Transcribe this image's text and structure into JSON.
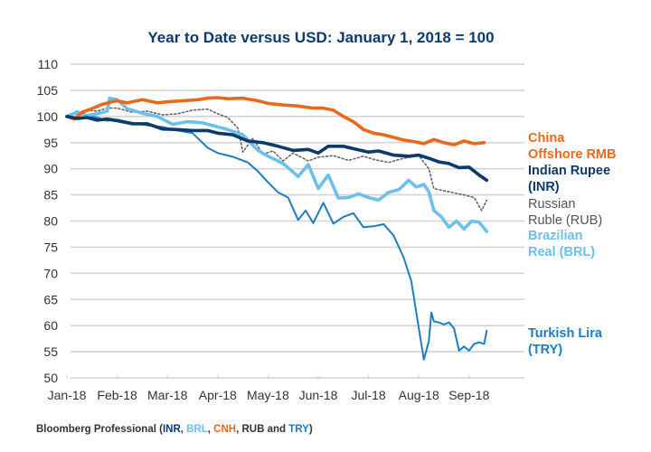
{
  "chart_data": {
    "type": "line",
    "title": "Year to Date versus USD: January 1, 2018 = 100",
    "xlabel": "",
    "ylabel": "",
    "ylim": [
      50,
      110
    ],
    "yticks": [
      110,
      105,
      100,
      95,
      90,
      85,
      80,
      75,
      70,
      65,
      60,
      55,
      50
    ],
    "xticks": [
      "Jan-18",
      "Feb-18",
      "Mar-18",
      "Apr-18",
      "May-18",
      "Jun-18",
      "Jul-18",
      "Aug-18",
      "Sep-18"
    ],
    "x_unit": "months since Jan 1, 2018",
    "xlim": [
      0,
      8.4
    ],
    "grid": true,
    "legend": "right (inline labels)",
    "source": {
      "prefix": "Bloomberg Professional (",
      "parts": [
        {
          "text": "INR",
          "color": "#0b3a6b"
        },
        {
          "text": ", ",
          "color": "#333333"
        },
        {
          "text": "BRL",
          "color": "#6cc0eb"
        },
        {
          "text": ", ",
          "color": "#333333"
        },
        {
          "text": "CNH",
          "color": "#e8691e"
        },
        {
          "text": ", RUB and ",
          "color": "#333333"
        },
        {
          "text": "TRY",
          "color": "#1f7cc0"
        },
        {
          "text": ")",
          "color": "#333333"
        }
      ]
    },
    "series": [
      {
        "name": "China Offshore RMB",
        "label_lines": [
          "China",
          "Offshore RMB"
        ],
        "color": "#e8691e",
        "style": "solid-thick",
        "x": [
          0,
          0.15,
          0.3,
          0.5,
          0.7,
          0.9,
          1.0,
          1.2,
          1.5,
          1.8,
          2.0,
          2.3,
          2.6,
          2.8,
          3.0,
          3.2,
          3.5,
          3.8,
          4.0,
          4.3,
          4.6,
          4.9,
          5.1,
          5.3,
          5.5,
          5.7,
          5.9,
          6.1,
          6.3,
          6.5,
          6.7,
          6.9,
          7.1,
          7.3,
          7.5,
          7.7,
          7.9,
          8.1,
          8.3
        ],
        "values": [
          100,
          99.5,
          100.8,
          101.5,
          102.3,
          102.8,
          103,
          102.6,
          103.2,
          102.6,
          102.8,
          103,
          103.2,
          103.5,
          103.6,
          103.4,
          103.5,
          103,
          102.5,
          102.2,
          102,
          101.6,
          101.6,
          101.2,
          100,
          99,
          97.5,
          96.8,
          96.5,
          96,
          95.5,
          95.2,
          94.8,
          95.6,
          95,
          94.6,
          95.3,
          94.8,
          95
        ]
      },
      {
        "name": "Indian Rupee (INR)",
        "label_lines": [
          "Indian Rupee",
          "(INR)"
        ],
        "color": "#0b3a6b",
        "style": "solid-thick",
        "x": [
          0,
          0.2,
          0.4,
          0.6,
          0.8,
          1.0,
          1.3,
          1.6,
          1.9,
          2.2,
          2.5,
          2.8,
          3.0,
          3.3,
          3.6,
          3.9,
          4.2,
          4.5,
          4.8,
          5.0,
          5.2,
          5.5,
          5.8,
          6.0,
          6.2,
          6.5,
          6.8,
          7.0,
          7.2,
          7.4,
          7.6,
          7.8,
          8.0,
          8.2,
          8.35
        ],
        "values": [
          100,
          99.6,
          99.8,
          99.3,
          99.5,
          99.2,
          98.6,
          98.6,
          97.6,
          97.5,
          97.3,
          97.3,
          96.8,
          96.5,
          95.3,
          95,
          94.3,
          93.5,
          93.7,
          93,
          94.3,
          94.3,
          93.6,
          93.2,
          93.4,
          92.6,
          92.4,
          92.6,
          92,
          91.3,
          91,
          90.2,
          90.3,
          88.8,
          87.8
        ]
      },
      {
        "name": "Russian Ruble (RUB)",
        "label_lines": [
          "Russian",
          "Ruble (RUB)"
        ],
        "color": "#666666",
        "style": "dotted",
        "x": [
          0,
          0.2,
          0.4,
          0.6,
          0.8,
          1.0,
          1.3,
          1.6,
          1.9,
          2.2,
          2.5,
          2.8,
          3.0,
          3.2,
          3.4,
          3.5,
          3.7,
          3.9,
          4.1,
          4.3,
          4.5,
          4.8,
          5.0,
          5.3,
          5.6,
          5.9,
          6.1,
          6.4,
          6.7,
          7.0,
          7.2,
          7.3,
          7.5,
          7.7,
          7.9,
          8.1,
          8.25,
          8.35
        ],
        "values": [
          100,
          100.5,
          101.2,
          101,
          101.6,
          101.6,
          100.8,
          101,
          100.3,
          100.5,
          101.2,
          101.4,
          100.5,
          99.8,
          97.8,
          93.2,
          95.8,
          92.8,
          93.4,
          91.5,
          93,
          91.5,
          92.2,
          92.5,
          91.6,
          92.4,
          91.8,
          91.2,
          92,
          92.5,
          90,
          86.2,
          85.8,
          85.4,
          85,
          84.5,
          82,
          84
        ]
      },
      {
        "name": "Brazilian Real (BRL)",
        "label_lines": [
          "Brazilian",
          "Real (BRL)"
        ],
        "color": "#6cc0eb",
        "style": "solid-thick",
        "x": [
          0,
          0.2,
          0.4,
          0.6,
          0.8,
          0.85,
          1.0,
          1.2,
          1.5,
          1.8,
          2.1,
          2.4,
          2.7,
          3.0,
          3.2,
          3.5,
          3.8,
          4.0,
          4.3,
          4.6,
          4.8,
          5.0,
          5.2,
          5.4,
          5.6,
          5.8,
          6.0,
          6.2,
          6.4,
          6.6,
          6.8,
          6.95,
          7.1,
          7.2,
          7.3,
          7.45,
          7.6,
          7.75,
          7.9,
          8.05,
          8.2,
          8.35
        ],
        "values": [
          100,
          100.8,
          100.2,
          100.5,
          101,
          103.5,
          103.2,
          101.5,
          100.6,
          100,
          98.5,
          99,
          98.8,
          98,
          97.5,
          96.5,
          93.5,
          92.4,
          91,
          88.5,
          90.8,
          86.2,
          88.8,
          84.4,
          84.5,
          85.2,
          84.5,
          84,
          85.5,
          86,
          87.8,
          86.5,
          87,
          85.6,
          82,
          80.8,
          78.8,
          80,
          78.5,
          80,
          79.8,
          78
        ]
      },
      {
        "name": "Turkish Lira (TRY)",
        "label_lines": [
          "Turkish Lira",
          "(TRY)"
        ],
        "color": "#1f7cc0",
        "style": "solid",
        "x": [
          0,
          0.2,
          0.4,
          0.6,
          0.8,
          1.0,
          1.3,
          1.6,
          1.9,
          2.2,
          2.5,
          2.8,
          3.0,
          3.3,
          3.6,
          3.8,
          4.0,
          4.2,
          4.4,
          4.6,
          4.75,
          4.9,
          5.1,
          5.3,
          5.5,
          5.7,
          5.9,
          6.1,
          6.3,
          6.5,
          6.7,
          6.85,
          7.0,
          7.1,
          7.2,
          7.25,
          7.3,
          7.4,
          7.5,
          7.6,
          7.7,
          7.8,
          7.9,
          8.0,
          8.1,
          8.2,
          8.3,
          8.35
        ],
        "values": [
          100,
          101,
          100.2,
          99.8,
          99.2,
          99.4,
          98.8,
          98.3,
          98,
          97.3,
          96.8,
          94,
          93,
          92.3,
          91.2,
          89.5,
          87.4,
          85.5,
          84.5,
          80.2,
          82,
          79.6,
          83.5,
          79.5,
          80.8,
          81.5,
          78.8,
          79,
          79.4,
          77.2,
          73,
          68.5,
          59.5,
          53.5,
          57,
          62.5,
          60.8,
          60.6,
          60.2,
          60.6,
          59.5,
          55.2,
          56,
          55.2,
          56.5,
          56.8,
          56.5,
          59
        ]
      }
    ]
  }
}
